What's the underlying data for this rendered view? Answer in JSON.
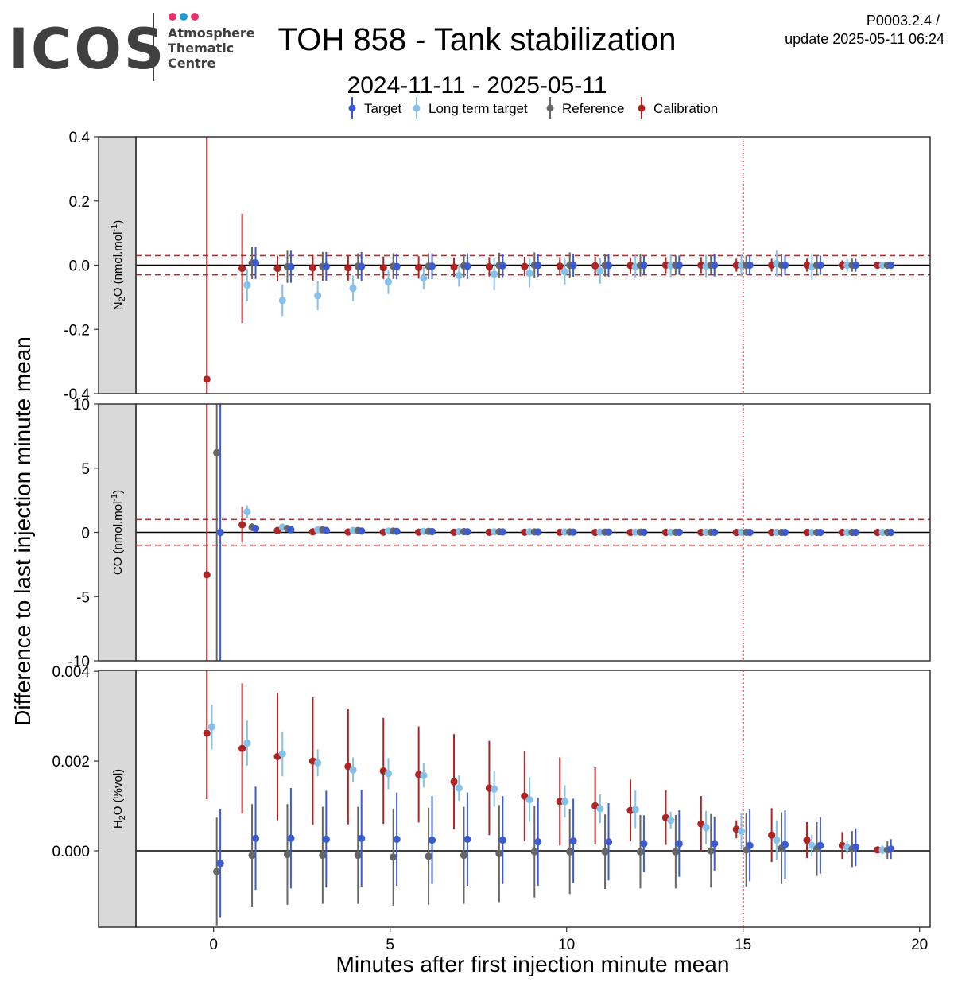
{
  "header": {
    "logo_text": "ICOS",
    "logo_sub": [
      "Atmosphere",
      "Thematic",
      "Centre"
    ],
    "logo_dot_colors": [
      "#e6336b",
      "#1e9ad6",
      "#e6336b"
    ],
    "title": "TOH 858 - Tank stabilization",
    "subtitle": "2024-11-11 - 2025-05-11",
    "version": "P0003.2.4 /",
    "update": "update  2025-05-11 06:24"
  },
  "legend": {
    "items": [
      {
        "label": "Target",
        "color": "#3b5bcf"
      },
      {
        "label": "Long term target",
        "color": "#86c1ea"
      },
      {
        "label": "Reference",
        "color": "#666666"
      },
      {
        "label": "Calibration",
        "color": "#b02323"
      }
    ]
  },
  "chart_data": {
    "type": "scatter",
    "xlabel": "Minutes after first injection minute mean",
    "ylabel": "Difference to last injection minute mean",
    "xlim": [
      -2.2,
      20.3
    ],
    "x_ticks": [
      "0",
      "5",
      "10",
      "15",
      "20"
    ],
    "x_tick_values": [
      0,
      5,
      10,
      15,
      20
    ],
    "vline_x": 15,
    "minutes": [
      0,
      1,
      2,
      3,
      4,
      5,
      6,
      7,
      8,
      9,
      10,
      11,
      12,
      13,
      14,
      15,
      16,
      17,
      18,
      19
    ],
    "series_order": [
      "Calibration",
      "Long term target",
      "Reference",
      "Target"
    ],
    "panels": [
      {
        "strip": "N2O (nmol.mol-1)",
        "strip_main": "N",
        "strip_sub": "2",
        "strip_rest": "O (nmol.mol",
        "strip_sup": "-1",
        "strip_end": ")",
        "ylim": [
          -0.4,
          0.4
        ],
        "y_ticks": [
          "0.4",
          "0.2",
          "0.0",
          "-0.2",
          "-0.4"
        ],
        "y_tick_values": [
          0.4,
          0.2,
          0.0,
          -0.2,
          -0.4
        ],
        "thresholds": [
          0.03,
          -0.03
        ],
        "series": [
          {
            "name": "Calibration",
            "values": [
              -0.355,
              -0.01,
              -0.01,
              -0.008,
              -0.008,
              -0.008,
              -0.007,
              -0.006,
              -0.005,
              -0.004,
              -0.003,
              -0.002,
              -0.001,
              0.0,
              0.0,
              0.0,
              0.0,
              0.0,
              0.0,
              0.0
            ],
            "err": [
              0.85,
              0.17,
              0.04,
              0.04,
              0.04,
              0.035,
              0.035,
              0.03,
              0.03,
              0.03,
              0.028,
              0.028,
              0.025,
              0.025,
              0.025,
              0.02,
              0.02,
              0.02,
              0.015,
              0.01
            ]
          },
          {
            "name": "Long term target",
            "values": [
              null,
              -0.062,
              -0.11,
              -0.095,
              -0.072,
              -0.052,
              -0.04,
              -0.032,
              -0.028,
              -0.025,
              -0.02,
              -0.018,
              -0.005,
              -0.002,
              -0.003,
              0.0,
              0.005,
              -0.005,
              0.0,
              0.0
            ],
            "err": [
              null,
              0.05,
              0.05,
              0.045,
              0.04,
              0.038,
              0.035,
              0.035,
              0.05,
              0.045,
              0.04,
              0.04,
              0.035,
              0.035,
              0.035,
              0.035,
              0.04,
              0.04,
              0.02,
              0.01
            ]
          },
          {
            "name": "Reference",
            "values": [
              null,
              0.007,
              -0.005,
              -0.004,
              -0.003,
              -0.003,
              -0.003,
              -0.002,
              -0.001,
              0.0,
              0.0,
              0.0,
              0.0,
              0.0,
              0.0,
              0.0,
              0.0,
              0.0,
              0.0,
              0.0
            ],
            "err": [
              null,
              0.05,
              0.05,
              0.045,
              0.04,
              0.04,
              0.04,
              0.035,
              0.04,
              0.04,
              0.04,
              0.035,
              0.035,
              0.03,
              0.03,
              0.03,
              0.035,
              0.03,
              0.02,
              0.01
            ]
          },
          {
            "name": "Target",
            "values": [
              null,
              0.007,
              -0.005,
              -0.004,
              -0.004,
              -0.004,
              -0.003,
              -0.003,
              -0.002,
              -0.001,
              -0.001,
              -0.001,
              0.0,
              0.0,
              0.0,
              0.0,
              0.0,
              0.0,
              0.0,
              0.0
            ],
            "err": [
              null,
              0.05,
              0.05,
              0.045,
              0.045,
              0.04,
              0.04,
              0.04,
              0.035,
              0.035,
              0.035,
              0.035,
              0.03,
              0.03,
              0.035,
              0.03,
              0.03,
              0.03,
              0.02,
              0.01
            ]
          }
        ]
      },
      {
        "strip": "CO (nmol.mol-1)",
        "strip_main": "CO (nmol.mol",
        "strip_sub": "",
        "strip_rest": "",
        "strip_sup": "-1",
        "strip_end": ")",
        "ylim": [
          -10,
          10
        ],
        "y_ticks": [
          "10",
          "5",
          "0",
          "-5",
          "-10"
        ],
        "y_tick_values": [
          10,
          5,
          0,
          -5,
          -10
        ],
        "thresholds": [
          1,
          -1
        ],
        "series": [
          {
            "name": "Calibration",
            "values": [
              -3.3,
              0.6,
              0.15,
              0.05,
              0.03,
              0.02,
              0.02,
              0.01,
              0.01,
              0.01,
              0.01,
              0.0,
              0.0,
              0.0,
              0.0,
              0.0,
              0.0,
              0.0,
              0.0,
              0.0
            ],
            "err": [
              25,
              1.4,
              0.2,
              0.1,
              0.1,
              0.08,
              0.08,
              0.08,
              0.06,
              0.06,
              0.06,
              0.05,
              0.05,
              0.05,
              0.05,
              0.05,
              0.05,
              0.05,
              0.05,
              0.05
            ]
          },
          {
            "name": "Long term target",
            "values": [
              null,
              1.6,
              0.4,
              0.2,
              0.15,
              0.1,
              0.08,
              0.06,
              0.05,
              0.04,
              0.03,
              0.02,
              0.02,
              0.01,
              0.01,
              0.01,
              0.0,
              0.0,
              0.0,
              0.0
            ],
            "err": [
              null,
              0.5,
              0.2,
              0.15,
              0.12,
              0.1,
              0.1,
              0.1,
              0.08,
              0.08,
              0.08,
              0.08,
              0.07,
              0.07,
              0.07,
              0.07,
              0.06,
              0.06,
              0.06,
              0.06
            ]
          },
          {
            "name": "Reference",
            "values": [
              6.2,
              0.4,
              0.3,
              0.2,
              0.15,
              0.1,
              0.08,
              0.06,
              0.05,
              0.04,
              0.03,
              0.02,
              0.02,
              0.01,
              0.01,
              0.01,
              0.0,
              0.0,
              0.0,
              0.0
            ],
            "err": [
              25,
              0.3,
              0.15,
              0.1,
              0.1,
              0.08,
              0.08,
              0.08,
              0.06,
              0.06,
              0.06,
              0.05,
              0.05,
              0.05,
              0.05,
              0.05,
              0.05,
              0.05,
              0.05,
              0.05
            ]
          },
          {
            "name": "Target",
            "values": [
              0.0,
              0.3,
              0.2,
              0.15,
              0.1,
              0.08,
              0.06,
              0.05,
              0.04,
              0.03,
              0.02,
              0.02,
              0.01,
              0.01,
              0.01,
              0.0,
              0.0,
              0.0,
              0.0,
              0.0
            ],
            "err": [
              25,
              0.2,
              0.12,
              0.1,
              0.1,
              0.08,
              0.08,
              0.08,
              0.06,
              0.06,
              0.06,
              0.05,
              0.05,
              0.05,
              0.05,
              0.05,
              0.05,
              0.05,
              0.05,
              0.05
            ]
          }
        ]
      },
      {
        "strip": "H2O (%vol)",
        "strip_main": "H",
        "strip_sub": "2",
        "strip_rest": "O (%vol)",
        "strip_sup": "",
        "strip_end": "",
        "ylim": [
          -0.0017,
          0.00402
        ],
        "y_ticks": [
          "0.004",
          "0.002",
          "0.000"
        ],
        "y_tick_values": [
          0.004,
          0.002,
          0.0
        ],
        "thresholds": [],
        "series": [
          {
            "name": "Calibration",
            "values": [
              0.00262,
              0.00228,
              0.0021,
              0.002,
              0.00188,
              0.00178,
              0.0017,
              0.00154,
              0.0014,
              0.00122,
              0.0011,
              0.001,
              0.0009,
              0.00074,
              0.0006,
              0.00048,
              0.00035,
              0.00024,
              0.00012,
              2e-05
            ],
            "err": [
              0.00147,
              0.00145,
              0.00142,
              0.00142,
              0.00129,
              0.00118,
              0.00107,
              0.00106,
              0.00105,
              0.00101,
              0.00098,
              0.00086,
              0.00069,
              0.00061,
              0.00062,
              0.0002,
              0.0006,
              0.0004,
              0.0003,
              2e-05
            ]
          },
          {
            "name": "Long term target",
            "values": [
              0.00276,
              0.0024,
              0.00216,
              0.00196,
              0.0018,
              0.00172,
              0.00168,
              0.0014,
              0.00138,
              0.00114,
              0.0011,
              0.00094,
              0.00092,
              0.00068,
              0.00052,
              0.00044,
              0.00024,
              0.00012,
              8e-05,
              2e-05
            ],
            "err": [
              0.0005,
              0.0005,
              0.0005,
              0.0003,
              0.00028,
              0.00035,
              0.00027,
              0.00028,
              0.0004,
              0.0005,
              0.00036,
              0.00032,
              0.00042,
              0.00019,
              0.00037,
              0.00041,
              0.00044,
              0.00024,
              0.00015,
              0.0001
            ]
          },
          {
            "name": "Reference",
            "values": [
              -0.00046,
              -0.0001,
              -8e-05,
              -0.0001,
              -0.0001,
              -0.00014,
              -0.00012,
              -0.0001,
              -6e-05,
              -2e-05,
              -2e-05,
              -2e-05,
              -2e-05,
              -2e-05,
              0.0,
              2e-05,
              6e-05,
              4e-05,
              4e-05,
              2e-05
            ],
            "err": [
              0.0012,
              0.00114,
              0.00112,
              0.00108,
              0.00108,
              0.00108,
              0.00108,
              0.00108,
              0.00108,
              0.00102,
              0.00094,
              0.00083,
              0.00082,
              0.00082,
              0.00082,
              0.00082,
              0.0008,
              0.0006,
              0.0004,
              0.0002
            ]
          },
          {
            "name": "Target",
            "values": [
              -0.00028,
              0.00028,
              0.00028,
              0.00026,
              0.00028,
              0.00026,
              0.00024,
              0.00026,
              0.00024,
              0.0002,
              0.00022,
              0.0002,
              0.00016,
              0.00016,
              0.00016,
              0.00012,
              0.00014,
              0.00012,
              8e-05,
              4e-05
            ],
            "err": [
              0.0012,
              0.00115,
              0.00112,
              0.00108,
              0.00108,
              0.00104,
              0.00098,
              0.00104,
              0.00098,
              0.00098,
              0.00094,
              0.00086,
              0.00063,
              0.00074,
              0.0006,
              0.0008,
              0.00076,
              0.00063,
              0.00042,
              0.00022
            ]
          }
        ]
      }
    ]
  }
}
